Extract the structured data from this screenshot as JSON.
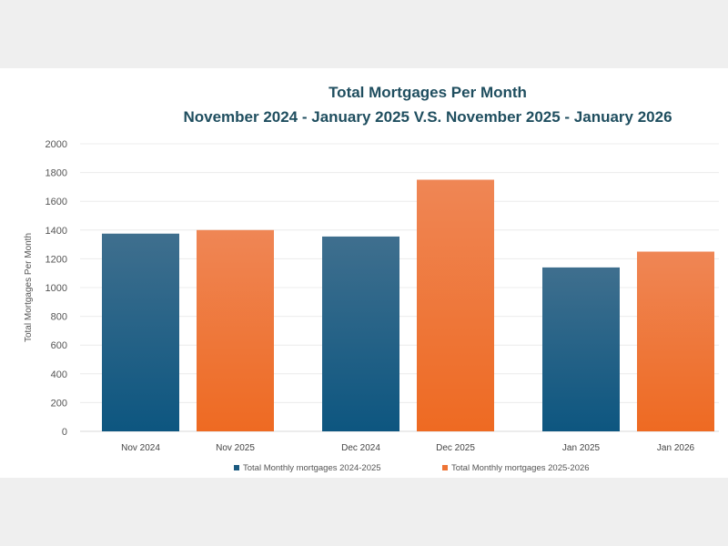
{
  "chart_data": {
    "type": "bar",
    "title": "Total Mortgages Per Month",
    "subtitle": "November 2024 - January 2025 V.S. November 2025 - January 2026",
    "ylabel": "Total  Mortgages Per Month",
    "xlabel": "",
    "ylim": [
      0,
      2000
    ],
    "yticks": [
      0,
      200,
      400,
      600,
      800,
      1000,
      1200,
      1400,
      1600,
      1800,
      2000
    ],
    "grid": true,
    "legend": "bottom",
    "groups": [
      {
        "labels": [
          "Nov 2024",
          "Nov 2025"
        ],
        "values": [
          1375,
          1400
        ]
      },
      {
        "labels": [
          "Dec 2024",
          "Dec 2025"
        ],
        "values": [
          1355,
          1750
        ]
      },
      {
        "labels": [
          "Jan 2025",
          "Jan 2026"
        ],
        "values": [
          1140,
          1250
        ]
      }
    ],
    "series": [
      {
        "name": "Total Monthly mortgages 2024-2025",
        "color": "#1a5a80",
        "values": [
          1375,
          1355,
          1140
        ]
      },
      {
        "name": "Total Monthly mortgages 2025-2026",
        "color": "#ee7435",
        "values": [
          1400,
          1750,
          1250
        ]
      }
    ]
  }
}
